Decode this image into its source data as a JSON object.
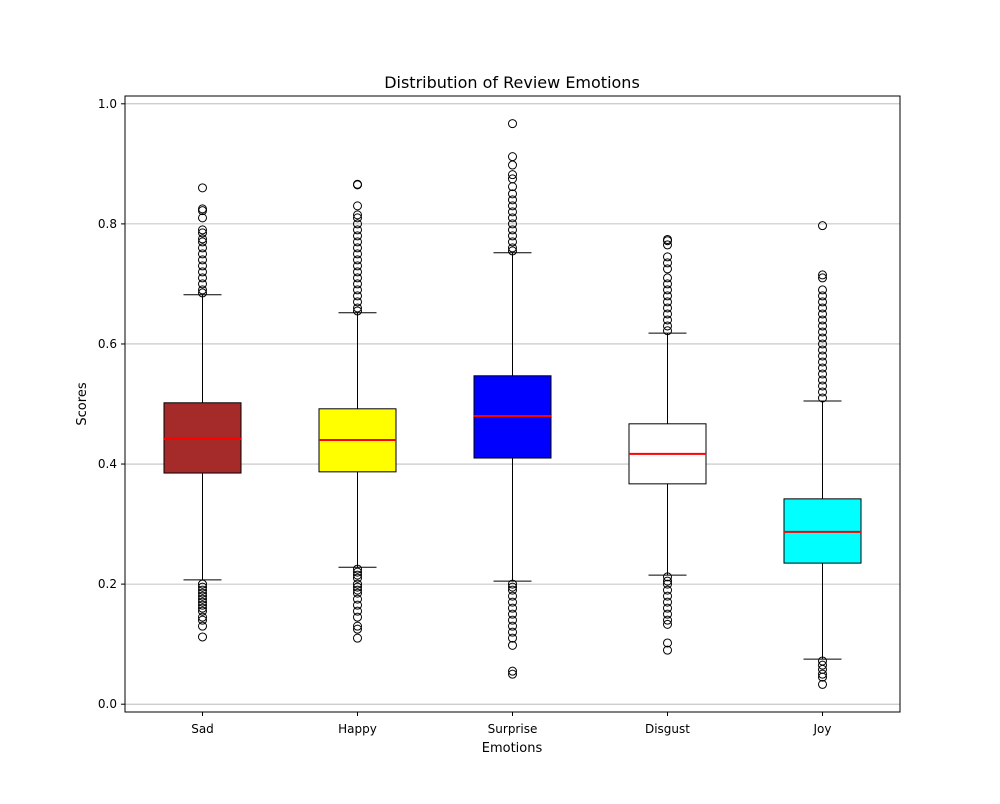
{
  "chart_data": {
    "type": "box",
    "title": "Distribution of Review Emotions",
    "xlabel": "Emotions",
    "ylabel": "Scores",
    "ylim": [
      -0.013,
      1.013
    ],
    "yticks": [
      "0.0",
      "0.2",
      "0.4",
      "0.6",
      "0.8",
      "1.0"
    ],
    "grid": "y",
    "median_color": "#ff0000",
    "boxes": [
      {
        "name": "Sad",
        "color": "#a52a2a",
        "q1": 0.385,
        "median": 0.442,
        "q3": 0.502,
        "whisker_low": 0.207,
        "whisker_high": 0.682,
        "outliers": [
          0.86,
          0.825,
          0.822,
          0.81,
          0.79,
          0.785,
          0.775,
          0.77,
          0.76,
          0.75,
          0.74,
          0.73,
          0.72,
          0.71,
          0.7,
          0.69,
          0.685,
          0.2,
          0.195,
          0.19,
          0.185,
          0.18,
          0.175,
          0.17,
          0.165,
          0.16,
          0.155,
          0.145,
          0.14,
          0.13,
          0.112
        ]
      },
      {
        "name": "Happy",
        "color": "#ffff00",
        "q1": 0.387,
        "median": 0.44,
        "q3": 0.492,
        "whisker_low": 0.228,
        "whisker_high": 0.652,
        "outliers": [
          0.866,
          0.865,
          0.83,
          0.815,
          0.81,
          0.8,
          0.79,
          0.78,
          0.77,
          0.76,
          0.75,
          0.74,
          0.73,
          0.72,
          0.71,
          0.7,
          0.69,
          0.68,
          0.67,
          0.66,
          0.655,
          0.225,
          0.22,
          0.215,
          0.21,
          0.2,
          0.195,
          0.19,
          0.185,
          0.175,
          0.165,
          0.155,
          0.145,
          0.13,
          0.125,
          0.11
        ]
      },
      {
        "name": "Surprise",
        "color": "#0000ff",
        "q1": 0.41,
        "median": 0.48,
        "q3": 0.547,
        "whisker_low": 0.205,
        "whisker_high": 0.752,
        "outliers": [
          0.967,
          0.912,
          0.898,
          0.882,
          0.875,
          0.862,
          0.85,
          0.84,
          0.83,
          0.82,
          0.81,
          0.8,
          0.79,
          0.78,
          0.77,
          0.76,
          0.755,
          0.2,
          0.195,
          0.19,
          0.18,
          0.17,
          0.16,
          0.15,
          0.14,
          0.13,
          0.12,
          0.11,
          0.098,
          0.055,
          0.05
        ]
      },
      {
        "name": "Disgust",
        "color": "#ffffff",
        "q1": 0.367,
        "median": 0.417,
        "q3": 0.467,
        "whisker_low": 0.215,
        "whisker_high": 0.618,
        "outliers": [
          0.774,
          0.772,
          0.765,
          0.745,
          0.735,
          0.725,
          0.71,
          0.7,
          0.69,
          0.68,
          0.67,
          0.66,
          0.65,
          0.64,
          0.63,
          0.622,
          0.212,
          0.205,
          0.2,
          0.19,
          0.18,
          0.17,
          0.16,
          0.15,
          0.14,
          0.133,
          0.102,
          0.09
        ]
      },
      {
        "name": "Joy",
        "color": "#00ffff",
        "q1": 0.235,
        "median": 0.287,
        "q3": 0.342,
        "whisker_low": 0.075,
        "whisker_high": 0.505,
        "outliers": [
          0.797,
          0.715,
          0.71,
          0.69,
          0.68,
          0.67,
          0.66,
          0.65,
          0.64,
          0.63,
          0.62,
          0.61,
          0.6,
          0.59,
          0.58,
          0.57,
          0.56,
          0.55,
          0.54,
          0.53,
          0.52,
          0.51,
          0.072,
          0.065,
          0.058,
          0.05,
          0.045,
          0.033
        ]
      }
    ]
  }
}
